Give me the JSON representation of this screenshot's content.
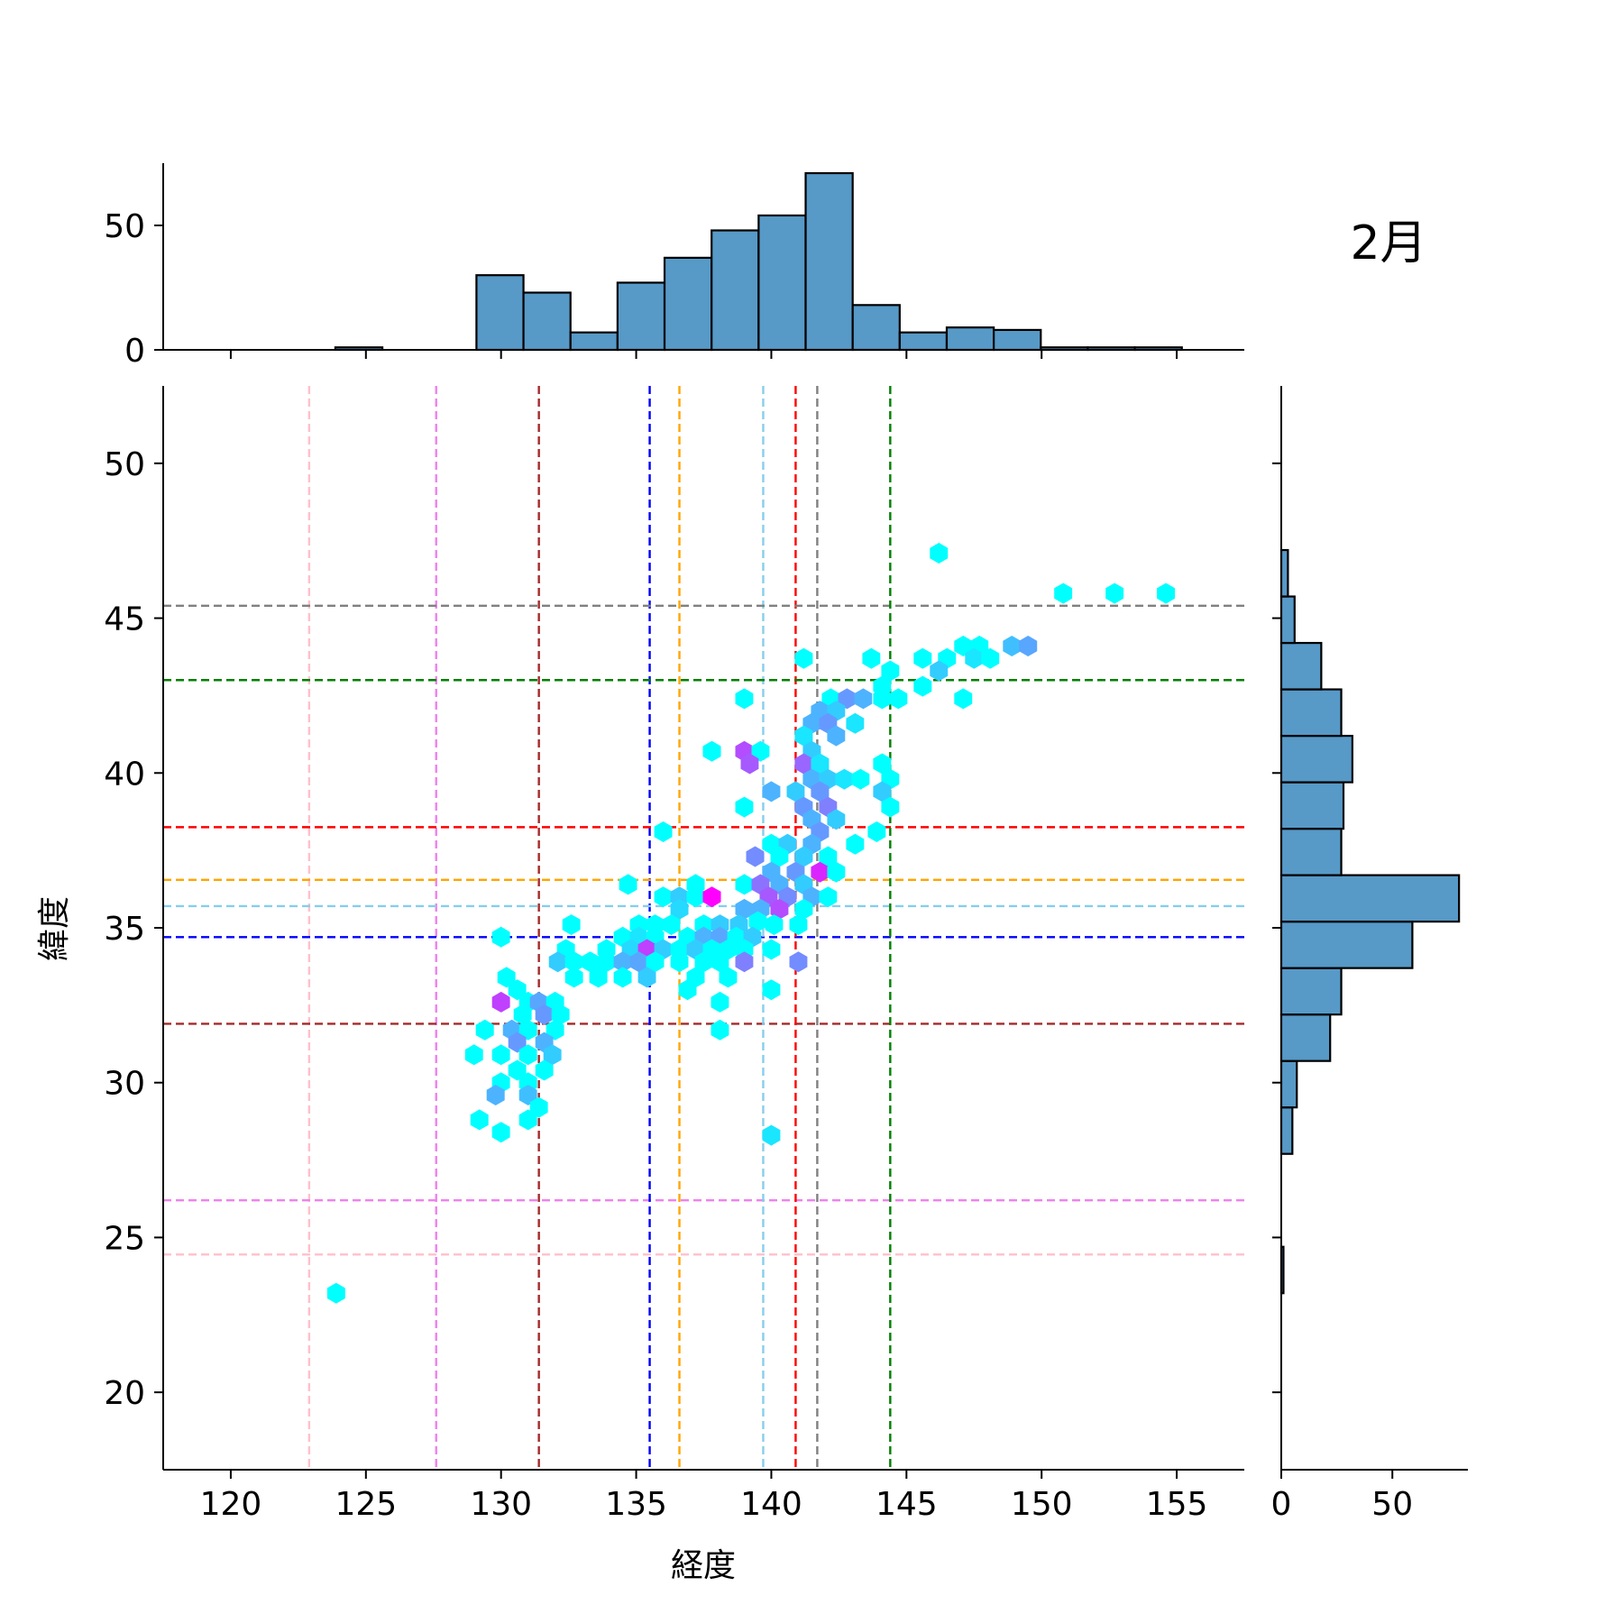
{
  "chart_data": {
    "type": "hexbin",
    "title": "2月",
    "xlabel": "経度",
    "ylabel": "緯度",
    "xlim": [
      117.5,
      157.5
    ],
    "ylim": [
      17.5,
      52.5
    ],
    "x_ticks": [
      120,
      125,
      130,
      135,
      140,
      145,
      150,
      155
    ],
    "y_ticks": [
      20,
      25,
      30,
      35,
      40,
      45,
      50
    ],
    "grid": false,
    "hist_color": "#5799c7",
    "colormap": [
      "#00ffff",
      "#ff00ff"
    ],
    "top_histogram": {
      "y_ticks": [
        0,
        50
      ],
      "ylim": [
        0,
        75
      ],
      "bin_edges": [
        123.87,
        125.61,
        127.35,
        129.09,
        130.83,
        132.57,
        134.31,
        136.05,
        137.79,
        139.53,
        141.27,
        143.01,
        144.75,
        146.49,
        148.23,
        149.97,
        151.71,
        153.45,
        155.19
      ],
      "counts": [
        1,
        0,
        0,
        30,
        23,
        7,
        27,
        37,
        48,
        54,
        71,
        18,
        7,
        9,
        8,
        1,
        1,
        1
      ]
    },
    "right_histogram": {
      "x_ticks": [
        0,
        50
      ],
      "xlim": [
        0,
        84
      ],
      "bin_edges": [
        23.2,
        24.7,
        26.2,
        27.7,
        29.2,
        30.7,
        32.2,
        33.7,
        35.2,
        36.7,
        38.2,
        39.7,
        41.2,
        42.7,
        44.2,
        45.7,
        47.2
      ],
      "counts": [
        1,
        0,
        0,
        5,
        7,
        22,
        27,
        59,
        80,
        27,
        28,
        32,
        27,
        18,
        6,
        3
      ]
    },
    "reference_lines": [
      {
        "color": "#ffc0cb",
        "x": 122.9,
        "y": 24.45
      },
      {
        "color": "#ee82ee",
        "x": 127.6,
        "y": 26.2
      },
      {
        "color": "#a52a2a",
        "x": 131.4,
        "y": 31.9
      },
      {
        "color": "#0000ff",
        "x": 135.5,
        "y": 34.7
      },
      {
        "color": "#ffa500",
        "x": 136.6,
        "y": 36.55
      },
      {
        "color": "#87ceeb",
        "x": 139.7,
        "y": 35.7
      },
      {
        "color": "#ff0000",
        "x": 140.9,
        "y": 38.25
      },
      {
        "color": "#808080",
        "x": 141.7,
        "y": 45.4
      },
      {
        "color": "#008000",
        "x": 144.4,
        "y": 43.0
      }
    ],
    "hexbins": [
      [
        123.9,
        23.2,
        0
      ],
      [
        146.2,
        47.1,
        0
      ],
      [
        150.8,
        45.8,
        0
      ],
      [
        152.7,
        45.8,
        0
      ],
      [
        154.6,
        45.8,
        0
      ],
      [
        147.1,
        44.1,
        0
      ],
      [
        147.7,
        44.1,
        0
      ],
      [
        148.9,
        44.1,
        0.25
      ],
      [
        149.5,
        44.1,
        0.35
      ],
      [
        146.5,
        43.7,
        0
      ],
      [
        147.5,
        43.7,
        0.1
      ],
      [
        148.1,
        43.7,
        0
      ],
      [
        141.2,
        43.7,
        0
      ],
      [
        143.7,
        43.7,
        0
      ],
      [
        145.6,
        43.7,
        0
      ],
      [
        144.4,
        43.3,
        0
      ],
      [
        146.2,
        43.3,
        0.2
      ],
      [
        145.6,
        42.8,
        0
      ],
      [
        144.1,
        42.8,
        0
      ],
      [
        142.2,
        42.4,
        0
      ],
      [
        142.8,
        42.4,
        0.4
      ],
      [
        143.4,
        42.4,
        0.3
      ],
      [
        144.1,
        42.4,
        0
      ],
      [
        144.7,
        42.4,
        0
      ],
      [
        139.0,
        42.4,
        0
      ],
      [
        147.1,
        42.4,
        0
      ],
      [
        141.8,
        42.0,
        0.3
      ],
      [
        142.4,
        42.0,
        0.2
      ],
      [
        143.1,
        41.6,
        0.1
      ],
      [
        141.5,
        41.6,
        0.3
      ],
      [
        142.1,
        41.6,
        0.4
      ],
      [
        141.2,
        41.2,
        0.1
      ],
      [
        142.4,
        41.2,
        0.3
      ],
      [
        137.8,
        40.7,
        0
      ],
      [
        139.0,
        40.7,
        0.7
      ],
      [
        139.6,
        40.7,
        0
      ],
      [
        141.5,
        40.7,
        0.2
      ],
      [
        139.2,
        40.3,
        0.65
      ],
      [
        141.2,
        40.3,
        0.6
      ],
      [
        141.8,
        40.3,
        0.1
      ],
      [
        144.1,
        40.3,
        0
      ],
      [
        141.5,
        39.8,
        0.3
      ],
      [
        142.1,
        39.8,
        0.2
      ],
      [
        142.7,
        39.8,
        0.1
      ],
      [
        143.3,
        39.8,
        0
      ],
      [
        144.4,
        39.8,
        0
      ],
      [
        140.0,
        39.4,
        0.3
      ],
      [
        140.9,
        39.4,
        0.2
      ],
      [
        141.8,
        39.4,
        0.4
      ],
      [
        144.1,
        39.4,
        0.2
      ],
      [
        139.0,
        38.9,
        0
      ],
      [
        141.2,
        38.9,
        0.4
      ],
      [
        142.1,
        38.9,
        0.5
      ],
      [
        144.4,
        38.9,
        0
      ],
      [
        141.5,
        38.5,
        0.3
      ],
      [
        142.4,
        38.5,
        0.2
      ],
      [
        141.8,
        38.1,
        0.4
      ],
      [
        136.0,
        38.1,
        0
      ],
      [
        143.9,
        38.1,
        0
      ],
      [
        140.0,
        37.7,
        0
      ],
      [
        140.6,
        37.7,
        0.2
      ],
      [
        141.5,
        37.7,
        0.3
      ],
      [
        143.1,
        37.7,
        0
      ],
      [
        139.4,
        37.3,
        0.45
      ],
      [
        140.3,
        37.3,
        0
      ],
      [
        141.2,
        37.3,
        0.2
      ],
      [
        142.1,
        37.3,
        0
      ],
      [
        140.0,
        36.8,
        0.3
      ],
      [
        140.9,
        36.8,
        0.4
      ],
      [
        141.8,
        36.8,
        0.85
      ],
      [
        142.4,
        36.8,
        0
      ],
      [
        134.7,
        36.4,
        0
      ],
      [
        137.2,
        36.4,
        0
      ],
      [
        139.0,
        36.4,
        0
      ],
      [
        139.6,
        36.4,
        0.55
      ],
      [
        140.3,
        36.4,
        0.3
      ],
      [
        141.2,
        36.4,
        0.2
      ],
      [
        136.0,
        36.0,
        0
      ],
      [
        136.6,
        36.0,
        0.2
      ],
      [
        137.2,
        36.0,
        0
      ],
      [
        137.8,
        36.0,
        1.0
      ],
      [
        139.9,
        36.0,
        0.65
      ],
      [
        140.6,
        36.0,
        0.45
      ],
      [
        141.5,
        36.0,
        0.3
      ],
      [
        142.1,
        36.0,
        0
      ],
      [
        136.6,
        35.6,
        0.15
      ],
      [
        139.0,
        35.6,
        0.3
      ],
      [
        139.6,
        35.6,
        0.3
      ],
      [
        140.3,
        35.6,
        0.7
      ],
      [
        141.2,
        35.6,
        0
      ],
      [
        135.1,
        35.1,
        0
      ],
      [
        135.7,
        35.1,
        0
      ],
      [
        136.3,
        35.1,
        0
      ],
      [
        137.5,
        35.1,
        0
      ],
      [
        138.1,
        35.1,
        0.2
      ],
      [
        138.8,
        35.1,
        0.2
      ],
      [
        139.5,
        35.2,
        0
      ],
      [
        140.1,
        35.1,
        0
      ],
      [
        141.0,
        35.1,
        0
      ],
      [
        132.6,
        35.1,
        0
      ],
      [
        130.0,
        34.7,
        0
      ],
      [
        134.5,
        34.7,
        0
      ],
      [
        135.1,
        34.7,
        0.1
      ],
      [
        135.7,
        34.7,
        0
      ],
      [
        136.9,
        34.7,
        0
      ],
      [
        137.5,
        34.7,
        0.3
      ],
      [
        138.1,
        34.7,
        0.35
      ],
      [
        138.7,
        34.7,
        0
      ],
      [
        139.3,
        34.7,
        0.2
      ],
      [
        132.4,
        34.3,
        0
      ],
      [
        133.9,
        34.3,
        0
      ],
      [
        134.8,
        34.3,
        0.15
      ],
      [
        135.4,
        34.3,
        0.75
      ],
      [
        136.0,
        34.3,
        0.2
      ],
      [
        136.6,
        34.3,
        0
      ],
      [
        137.2,
        34.3,
        0.2
      ],
      [
        137.8,
        34.3,
        0
      ],
      [
        138.4,
        34.3,
        0
      ],
      [
        139.0,
        34.3,
        0
      ],
      [
        140.0,
        34.3,
        0
      ],
      [
        132.1,
        33.9,
        0.2
      ],
      [
        132.7,
        33.9,
        0
      ],
      [
        133.3,
        33.9,
        0
      ],
      [
        133.9,
        33.9,
        0
      ],
      [
        134.5,
        33.9,
        0.3
      ],
      [
        135.1,
        33.9,
        0.35
      ],
      [
        135.7,
        33.9,
        0
      ],
      [
        136.6,
        33.9,
        0
      ],
      [
        137.5,
        33.9,
        0
      ],
      [
        138.1,
        33.9,
        0
      ],
      [
        139.0,
        33.9,
        0.5
      ],
      [
        141.0,
        33.9,
        0.45
      ],
      [
        132.7,
        33.4,
        0
      ],
      [
        134.5,
        33.4,
        0
      ],
      [
        133.6,
        33.4,
        0
      ],
      [
        135.4,
        33.4,
        0.2
      ],
      [
        137.2,
        33.4,
        0
      ],
      [
        138.4,
        33.4,
        0
      ],
      [
        136.9,
        33.0,
        0
      ],
      [
        140.0,
        33.0,
        0
      ],
      [
        130.2,
        33.4,
        0
      ],
      [
        130.6,
        33.0,
        0
      ],
      [
        130.0,
        32.6,
        0.75
      ],
      [
        131.0,
        32.6,
        0
      ],
      [
        131.4,
        32.6,
        0.35
      ],
      [
        132.0,
        32.6,
        0
      ],
      [
        130.8,
        32.2,
        0
      ],
      [
        131.6,
        32.2,
        0.4
      ],
      [
        132.2,
        32.2,
        0
      ],
      [
        138.1,
        32.6,
        0
      ],
      [
        129.4,
        31.7,
        0
      ],
      [
        130.4,
        31.7,
        0.3
      ],
      [
        131.0,
        31.7,
        0
      ],
      [
        132.0,
        31.7,
        0
      ],
      [
        138.1,
        31.7,
        0
      ],
      [
        130.6,
        31.3,
        0.4
      ],
      [
        131.6,
        31.3,
        0.3
      ],
      [
        129.0,
        30.9,
        0
      ],
      [
        130.0,
        30.9,
        0
      ],
      [
        131.0,
        30.9,
        0
      ],
      [
        131.9,
        30.9,
        0.2
      ],
      [
        130.6,
        30.4,
        0
      ],
      [
        131.6,
        30.4,
        0
      ],
      [
        130.0,
        30.0,
        0
      ],
      [
        131.0,
        30.0,
        0
      ],
      [
        129.8,
        29.6,
        0.3
      ],
      [
        131.0,
        29.6,
        0.25
      ],
      [
        131.4,
        29.2,
        0
      ],
      [
        129.2,
        28.8,
        0
      ],
      [
        131.0,
        28.8,
        0
      ],
      [
        130.0,
        28.4,
        0
      ],
      [
        140.0,
        28.3,
        0.1
      ]
    ]
  }
}
